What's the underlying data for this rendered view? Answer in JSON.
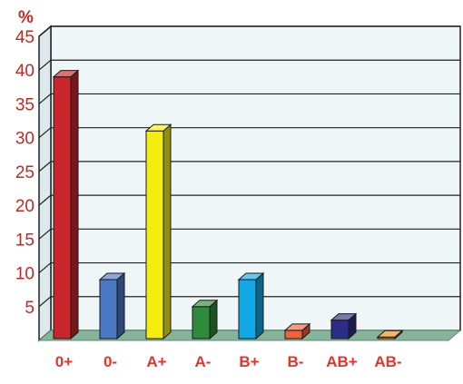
{
  "chart_data": {
    "type": "bar",
    "title": "",
    "ylabel": "%",
    "xlabel": "",
    "categories": [
      "0+",
      "0-",
      "A+",
      "A-",
      "B+",
      "B-",
      "AB+",
      "AB-"
    ],
    "values": [
      39,
      9,
      31,
      5,
      9,
      1.5,
      3,
      0.5
    ],
    "ylim": [
      0,
      45
    ],
    "yticks": [
      "5",
      "10",
      "15",
      "20",
      "25",
      "30",
      "35",
      "40",
      "45"
    ],
    "grid": true,
    "legend": "none",
    "colors": {
      "bars": [
        "#c8262b",
        "#4a78c4",
        "#f4ee10",
        "#2f8a3a",
        "#10a9e6",
        "#f0633a",
        "#2c2d86",
        "#ee8a22"
      ],
      "plot_background": "#eef6f8",
      "floor": "#86b49a",
      "gridline": "#222222",
      "text": "#c8281e"
    }
  }
}
